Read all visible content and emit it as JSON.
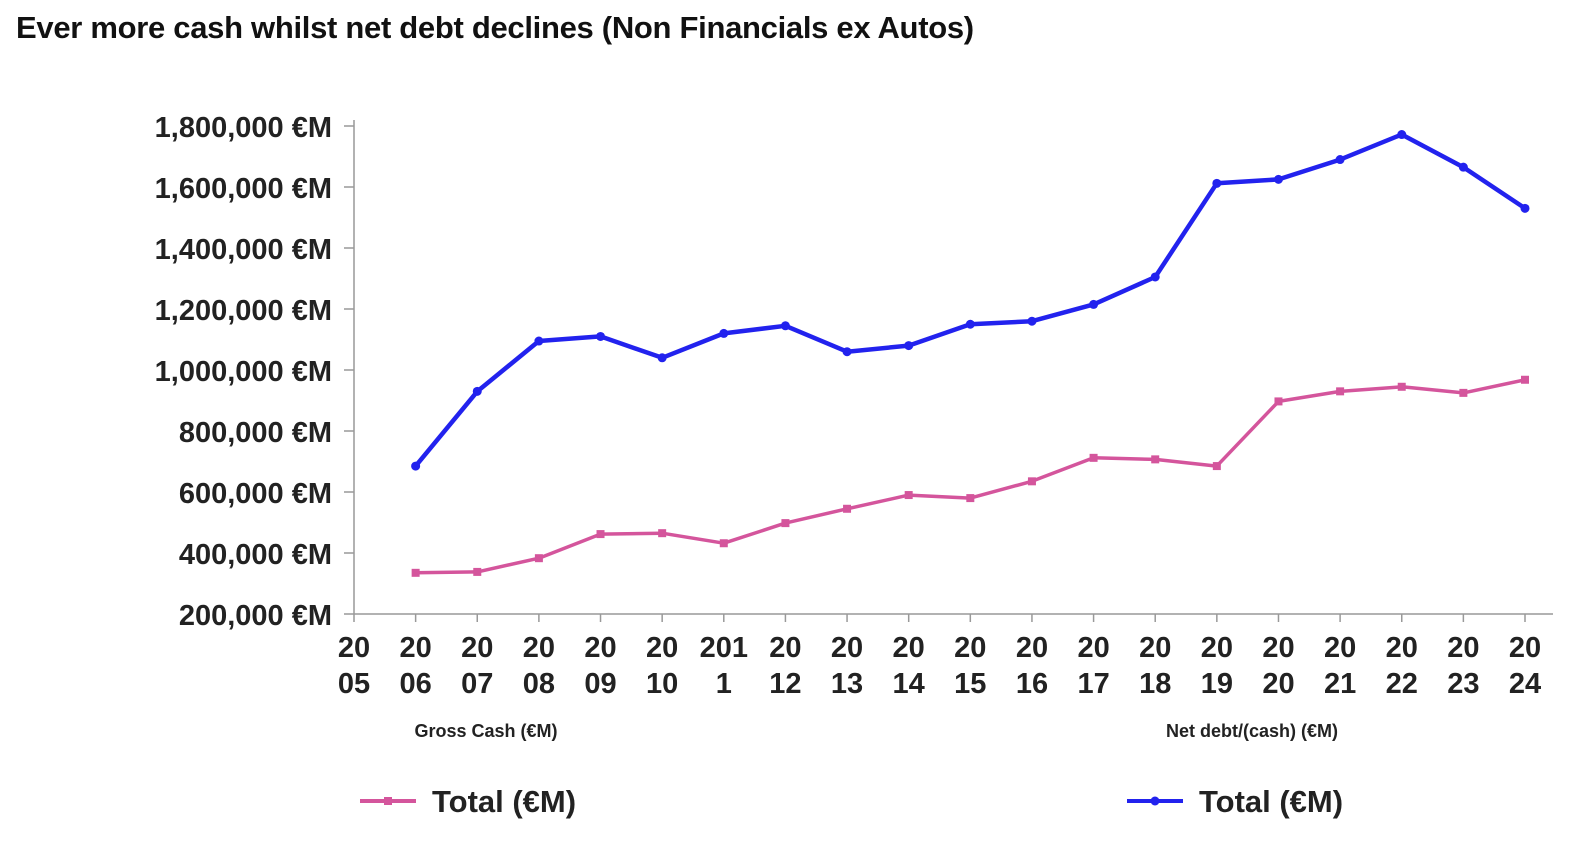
{
  "title": "Ever more cash whilst net debt declines (Non Financials ex Autos)",
  "chart_data": {
    "type": "line",
    "title": "Ever more cash whilst net debt declines (Non Financials ex Autos)",
    "x_tick_labels": [
      [
        "20",
        "05"
      ],
      [
        "20",
        "06"
      ],
      [
        "20",
        "07"
      ],
      [
        "20",
        "08"
      ],
      [
        "20",
        "09"
      ],
      [
        "20",
        "10"
      ],
      [
        "201",
        "1"
      ],
      [
        "20",
        "12"
      ],
      [
        "20",
        "13"
      ],
      [
        "20",
        "14"
      ],
      [
        "20",
        "15"
      ],
      [
        "20",
        "16"
      ],
      [
        "20",
        "17"
      ],
      [
        "20",
        "18"
      ],
      [
        "20",
        "19"
      ],
      [
        "20",
        "20"
      ],
      [
        "20",
        "21"
      ],
      [
        "20",
        "22"
      ],
      [
        "20",
        "23"
      ],
      [
        "20",
        "24"
      ]
    ],
    "y_ticks": [
      200000,
      400000,
      600000,
      800000,
      1000000,
      1200000,
      1400000,
      1600000,
      1800000
    ],
    "y_tick_labels": [
      "200,000 €M",
      "400,000 €M",
      "600,000 €M",
      "800,000 €M",
      "1,000,000 €M",
      "1,200,000 €M",
      "1,400,000 €M",
      "1,600,000 €M",
      "1,800,000 €M"
    ],
    "ylim": [
      200000,
      1800000
    ],
    "xlim": [
      2005,
      2024
    ],
    "grid": false,
    "legend_position": "bottom",
    "group_labels": [
      "Gross Cash (€M)",
      "Net debt/(cash) (€M)"
    ],
    "series": [
      {
        "name": "Total (€M)",
        "group": "Gross Cash (€M)",
        "color": "#d4559c",
        "marker": "square",
        "x": [
          2006,
          2007,
          2008,
          2009,
          2010,
          2011,
          2012,
          2013,
          2014,
          2015,
          2016,
          2017,
          2018,
          2019,
          2020,
          2021,
          2022,
          2023,
          2024
        ],
        "values": [
          335000,
          338000,
          383000,
          462000,
          465000,
          432000,
          498000,
          545000,
          590000,
          580000,
          635000,
          712000,
          707000,
          685000,
          897000,
          930000,
          945000,
          925000,
          968000
        ]
      },
      {
        "name": "Total (€M)",
        "group": "Net debt/(cash) (€M)",
        "color": "#2222ee",
        "marker": "circle",
        "x": [
          2006,
          2007,
          2008,
          2009,
          2010,
          2011,
          2012,
          2013,
          2014,
          2015,
          2016,
          2017,
          2018,
          2019,
          2020,
          2021,
          2022,
          2023,
          2024
        ],
        "values": [
          685000,
          930000,
          1095000,
          1110000,
          1040000,
          1120000,
          1145000,
          1060000,
          1080000,
          1150000,
          1160000,
          1215000,
          1305000,
          1612000,
          1625000,
          1690000,
          1772000,
          1665000,
          1530000
        ]
      }
    ]
  }
}
